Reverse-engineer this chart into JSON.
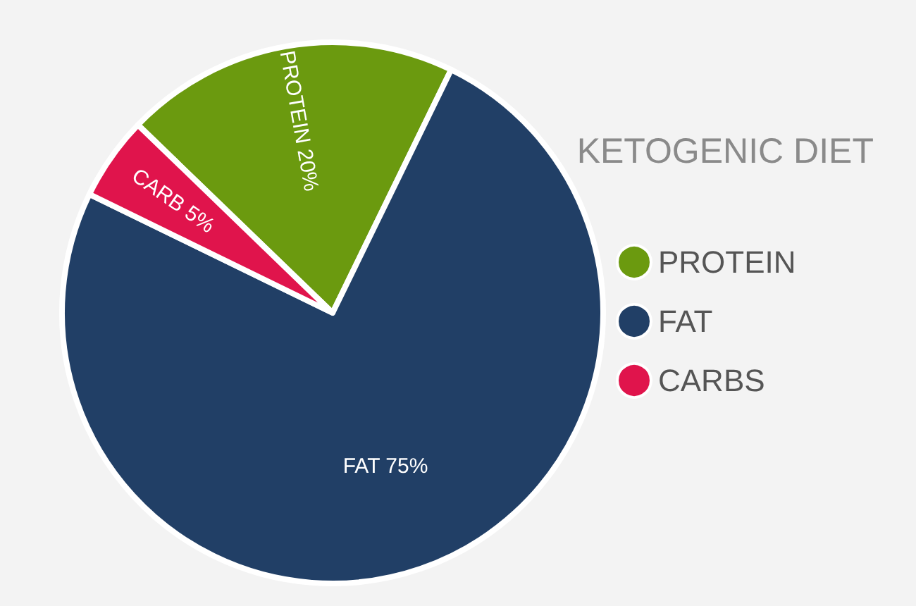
{
  "chart_data": {
    "type": "pie",
    "title": "KETOGENIC DIET",
    "categories": [
      "PROTEIN",
      "FAT",
      "CARBS"
    ],
    "values": [
      20,
      75,
      5
    ],
    "colors": [
      "#6b9a0f",
      "#213f66",
      "#e0144c"
    ],
    "value_labels": [
      "PROTEIN 20%",
      "FAT 75%",
      "CARB 5%"
    ],
    "legend": "right"
  }
}
